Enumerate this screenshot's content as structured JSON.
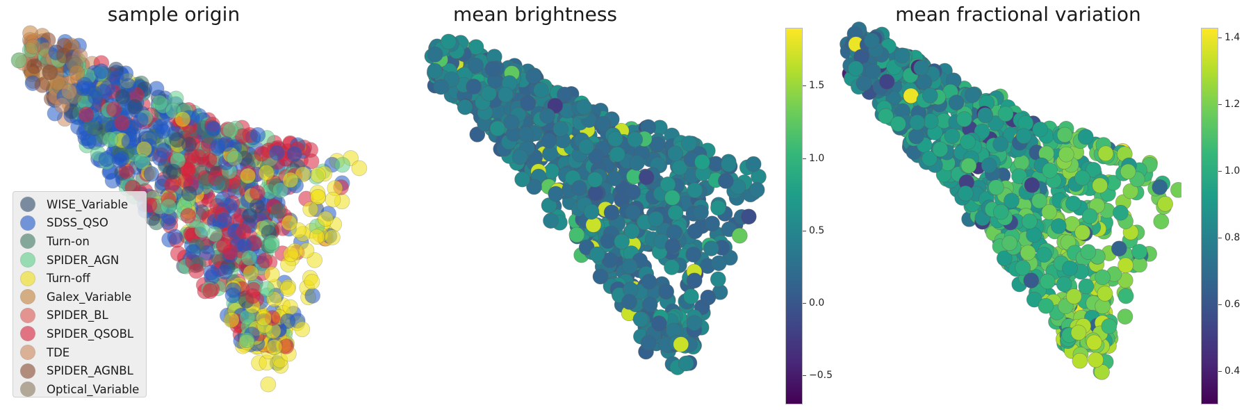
{
  "panels": {
    "origin": {
      "title": "sample origin"
    },
    "brightness": {
      "title": "mean brightness"
    },
    "variation": {
      "title": "mean fractional variation"
    }
  },
  "chart_data": [
    {
      "type": "scatter",
      "title": "sample origin",
      "legend_position": "lower-left",
      "grid": false,
      "axes_visible": false,
      "series": [
        {
          "name": "WISE_Variable",
          "color": "#2f4b6b"
        },
        {
          "name": "SDSS_QSO",
          "color": "#1f57c8"
        },
        {
          "name": "Turn-on",
          "color": "#3d7a62"
        },
        {
          "name": "SPIDER_AGN",
          "color": "#5fcf8c"
        },
        {
          "name": "Turn-off",
          "color": "#f1e01a"
        },
        {
          "name": "Galex_Variable",
          "color": "#c6823b"
        },
        {
          "name": "SPIDER_BL",
          "color": "#dc5a55"
        },
        {
          "name": "SPIDER_QSOBL",
          "color": "#d8213c"
        },
        {
          "name": "TDE",
          "color": "#ce8a5e"
        },
        {
          "name": "SPIDER_AGNBL",
          "color": "#8a4a32"
        },
        {
          "name": "Optical_Variable",
          "color": "#8a7a5e"
        }
      ]
    },
    {
      "type": "scatter",
      "title": "mean brightness",
      "colormap": "viridis",
      "colorbar": {
        "min": -0.7,
        "max": 1.9,
        "ticks": [
          "−0.5",
          "0.0",
          "0.5",
          "1.0",
          "1.5"
        ],
        "tick_values": [
          -0.5,
          0.0,
          0.5,
          1.0,
          1.5
        ]
      },
      "grid": false,
      "axes_visible": false
    },
    {
      "type": "scatter",
      "title": "mean fractional variation",
      "colormap": "viridis",
      "colorbar": {
        "min": 0.3,
        "max": 1.43,
        "ticks": [
          "0.4",
          "0.6",
          "0.8",
          "1.0",
          "1.2",
          "1.4"
        ],
        "tick_values": [
          0.4,
          0.6,
          0.8,
          1.0,
          1.2,
          1.4
        ]
      },
      "grid": false,
      "axes_visible": false
    }
  ]
}
